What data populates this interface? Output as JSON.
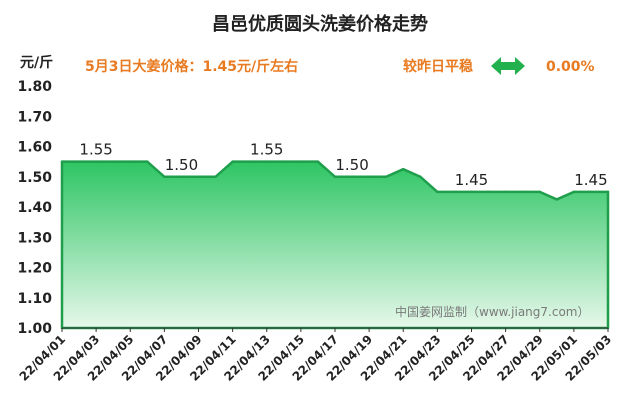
{
  "chart_data": {
    "type": "area",
    "title": "昌邑优质圆头洗姜价格走势",
    "unit_label": "元/斤",
    "price_note": "5月3日大姜价格：1.45元/斤左右",
    "change_text": "较昨日平稳",
    "change_icon": "double-arrow-icon",
    "change_percent": "0.00%",
    "watermark": "中国姜网监制（www.jiang7.com）",
    "ylim": [
      1.0,
      1.8
    ],
    "yticks": [
      "1.00",
      "1.10",
      "1.20",
      "1.30",
      "1.40",
      "1.50",
      "1.60",
      "1.70",
      "1.80"
    ],
    "x_tick_labels": [
      "22/04/01",
      "22/04/03",
      "22/04/05",
      "22/04/07",
      "22/04/09",
      "22/04/11",
      "22/04/13",
      "22/04/15",
      "22/04/17",
      "22/04/19",
      "22/04/21",
      "22/04/23",
      "22/04/25",
      "22/04/27",
      "22/04/29",
      "22/05/01",
      "22/05/03"
    ],
    "x": [
      "22/04/01",
      "22/04/02",
      "22/04/03",
      "22/04/04",
      "22/04/05",
      "22/04/06",
      "22/04/07",
      "22/04/08",
      "22/04/09",
      "22/04/10",
      "22/04/11",
      "22/04/12",
      "22/04/13",
      "22/04/14",
      "22/04/15",
      "22/04/16",
      "22/04/17",
      "22/04/18",
      "22/04/19",
      "22/04/20",
      "22/04/21",
      "22/04/22",
      "22/04/23",
      "22/04/24",
      "22/04/25",
      "22/04/26",
      "22/04/27",
      "22/04/28",
      "22/04/29",
      "22/04/30",
      "22/05/01",
      "22/05/02",
      "22/05/03"
    ],
    "values": [
      1.55,
      1.55,
      1.55,
      1.55,
      1.55,
      1.55,
      1.5,
      1.5,
      1.5,
      1.5,
      1.55,
      1.55,
      1.55,
      1.55,
      1.55,
      1.55,
      1.5,
      1.5,
      1.5,
      1.5,
      1.525,
      1.5,
      1.45,
      1.45,
      1.45,
      1.45,
      1.45,
      1.45,
      1.45,
      1.425,
      1.45,
      1.45,
      1.45
    ],
    "data_labels": [
      {
        "x": "22/04/03",
        "text": "1.55"
      },
      {
        "x": "22/04/08",
        "text": "1.50"
      },
      {
        "x": "22/04/13",
        "text": "1.55"
      },
      {
        "x": "22/04/18",
        "text": "1.50"
      },
      {
        "x": "22/04/25",
        "text": "1.45"
      },
      {
        "x": "22/05/02",
        "text": "1.45"
      }
    ],
    "colors": {
      "fill_top": "#2ec564",
      "fill_bottom": "#e6f8ea",
      "line": "#1f9e4c",
      "accent": "#e87b22",
      "arrow": "#22b14c"
    },
    "grid": false
  }
}
